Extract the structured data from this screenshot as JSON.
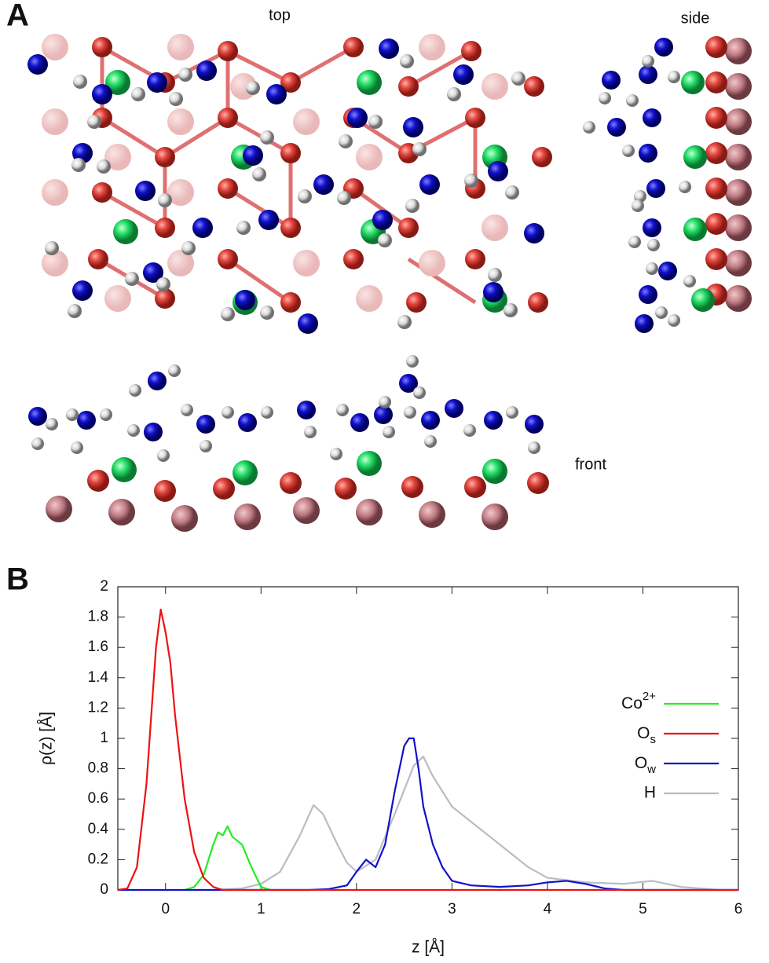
{
  "panel_a": {
    "label": "A",
    "views": [
      "top",
      "side",
      "front"
    ]
  },
  "panel_b_label": "B",
  "chart_data": {
    "type": "line",
    "x_label": "z [Å]",
    "y_label": "ρ(z) [Å]",
    "xlim": [
      -0.5,
      6
    ],
    "xticks": [
      0,
      1,
      2,
      3,
      4,
      5,
      6
    ],
    "ylim": [
      0,
      2
    ],
    "yticks": [
      0,
      0.2,
      0.4,
      0.6,
      0.8,
      1,
      1.2,
      1.4,
      1.6,
      1.8,
      2
    ],
    "legend": "right",
    "series": [
      {
        "name": "Co2+",
        "color": "#22ee22",
        "x": [
          0.2,
          0.3,
          0.4,
          0.5,
          0.55,
          0.6,
          0.65,
          0.7,
          0.8,
          0.9,
          1.0,
          1.1
        ],
        "values": [
          0,
          0.02,
          0.1,
          0.3,
          0.38,
          0.36,
          0.42,
          0.35,
          0.3,
          0.15,
          0.02,
          0
        ]
      },
      {
        "name": "Os",
        "color": "#ee1111",
        "x": [
          -0.5,
          -0.4,
          -0.3,
          -0.2,
          -0.1,
          -0.05,
          0,
          0.05,
          0.1,
          0.2,
          0.3,
          0.4,
          0.5,
          0.6,
          1,
          6
        ],
        "values": [
          0,
          0.01,
          0.15,
          0.7,
          1.6,
          1.85,
          1.7,
          1.5,
          1.15,
          0.6,
          0.25,
          0.08,
          0.02,
          0,
          0,
          0
        ]
      },
      {
        "name": "Ow",
        "color": "#1111cc",
        "x": [
          -0.5,
          1.5,
          1.7,
          1.9,
          2.0,
          2.1,
          2.2,
          2.3,
          2.4,
          2.5,
          2.55,
          2.6,
          2.65,
          2.7,
          2.8,
          2.9,
          3.0,
          3.2,
          3.5,
          3.8,
          4.0,
          4.2,
          4.4,
          4.6,
          4.8,
          6
        ],
        "values": [
          0,
          0,
          0.005,
          0.03,
          0.12,
          0.2,
          0.15,
          0.3,
          0.65,
          0.95,
          1.0,
          1.0,
          0.8,
          0.55,
          0.3,
          0.15,
          0.06,
          0.03,
          0.02,
          0.03,
          0.05,
          0.06,
          0.04,
          0.01,
          0,
          0
        ]
      },
      {
        "name": "H",
        "color": "#bbbbc4",
        "x": [
          0.5,
          0.8,
          1.0,
          1.2,
          1.4,
          1.55,
          1.65,
          1.8,
          1.9,
          2.0,
          2.2,
          2.4,
          2.6,
          2.7,
          2.8,
          3.0,
          3.2,
          3.4,
          3.6,
          3.8,
          4.0,
          4.4,
          4.8,
          5.1,
          5.4,
          5.8,
          6
        ],
        "values": [
          0,
          0.01,
          0.04,
          0.12,
          0.35,
          0.56,
          0.5,
          0.3,
          0.18,
          0.12,
          0.2,
          0.5,
          0.82,
          0.88,
          0.75,
          0.55,
          0.45,
          0.35,
          0.25,
          0.15,
          0.08,
          0.05,
          0.04,
          0.06,
          0.02,
          0,
          0
        ]
      }
    ]
  }
}
